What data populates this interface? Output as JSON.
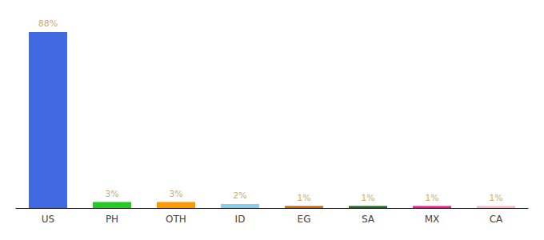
{
  "chart_data": {
    "type": "bar",
    "categories": [
      "US",
      "PH",
      "OTH",
      "ID",
      "EG",
      "SA",
      "MX",
      "CA"
    ],
    "values": [
      88,
      3,
      3,
      2,
      1,
      1,
      1,
      1
    ],
    "value_labels": [
      "88%",
      "3%",
      "3%",
      "2%",
      "1%",
      "1%",
      "1%",
      "1%"
    ],
    "colors": [
      "#4169E1",
      "#22CC22",
      "#FF9900",
      "#87CEEB",
      "#CC6600",
      "#1A6B1A",
      "#FF1493",
      "#FFB6C1"
    ],
    "ylim": [
      0,
      92
    ],
    "grid": false,
    "data_labels": true,
    "tick_labels": "x"
  }
}
